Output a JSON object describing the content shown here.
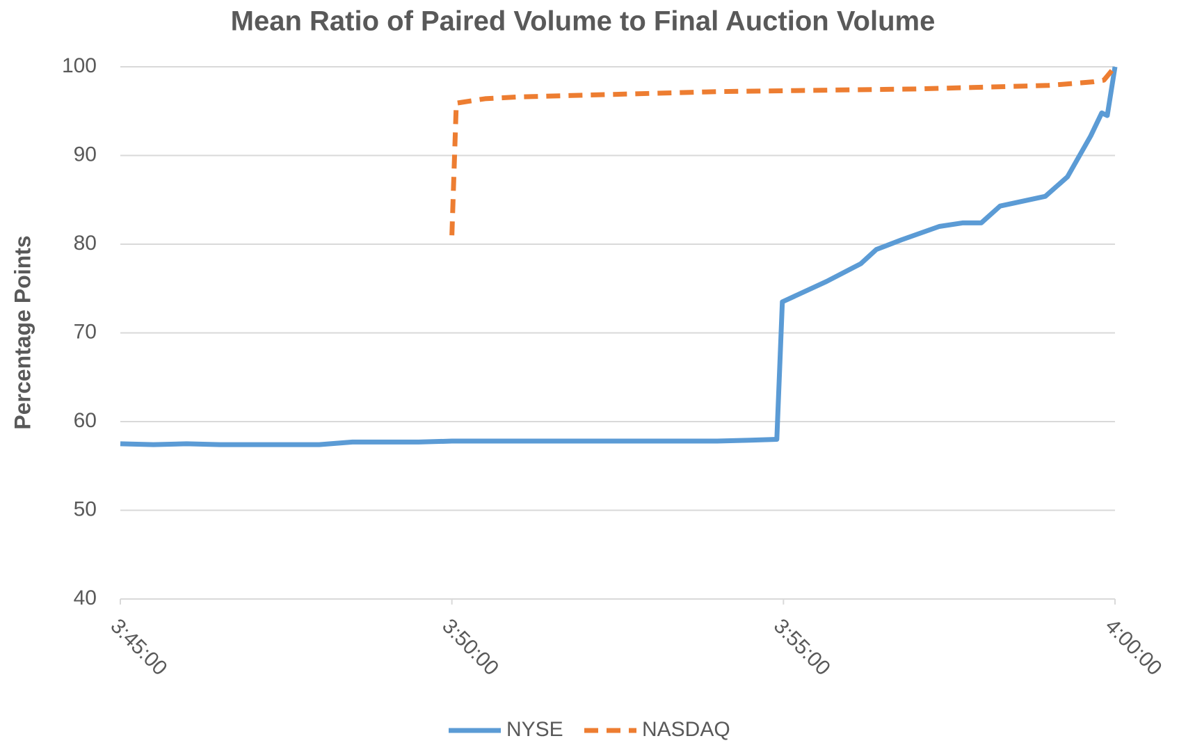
{
  "chart_data": {
    "type": "line",
    "title": "Mean Ratio of Paired Volume to Final Auction Volume",
    "y_label": "Percentage Points",
    "xlim": [
      0,
      900
    ],
    "xticks": [
      {
        "value": 0,
        "label": "3:45:00"
      },
      {
        "value": 300,
        "label": "3:50:00"
      },
      {
        "value": 600,
        "label": "3:55:00"
      },
      {
        "value": 900,
        "label": "4:00:00"
      }
    ],
    "ylim": [
      40,
      100
    ],
    "yticks": [
      40,
      50,
      60,
      70,
      80,
      90,
      100
    ],
    "grid": true,
    "legend": "bottom",
    "series": [
      {
        "name": "NYSE",
        "color": "#5b9bd5",
        "dashed": false,
        "x": [
          0,
          30,
          60,
          90,
          120,
          150,
          180,
          210,
          240,
          270,
          300,
          330,
          360,
          420,
          480,
          540,
          570,
          594,
          599,
          639,
          670,
          684,
          707,
          741,
          762,
          779,
          796,
          837,
          857,
          878,
          888,
          893,
          900
        ],
        "values": [
          57.5,
          57.4,
          57.5,
          57.4,
          57.4,
          57.4,
          57.4,
          57.7,
          57.7,
          57.7,
          57.8,
          57.8,
          57.8,
          57.8,
          57.8,
          57.8,
          57.9,
          58.0,
          73.5,
          75.8,
          77.8,
          79.4,
          80.5,
          82.0,
          82.4,
          82.4,
          84.3,
          85.4,
          87.6,
          92.2,
          94.8,
          94.5,
          100
        ]
      },
      {
        "name": "NASDAQ",
        "color": "#ed7d31",
        "dashed": true,
        "x": [
          300,
          304,
          330,
          360,
          420,
          480,
          540,
          600,
          660,
          720,
          780,
          840,
          880,
          890,
          900
        ],
        "values": [
          81,
          95.9,
          96.4,
          96.6,
          96.8,
          97.0,
          97.2,
          97.3,
          97.4,
          97.5,
          97.7,
          97.9,
          98.3,
          98.5,
          100
        ]
      }
    ]
  }
}
